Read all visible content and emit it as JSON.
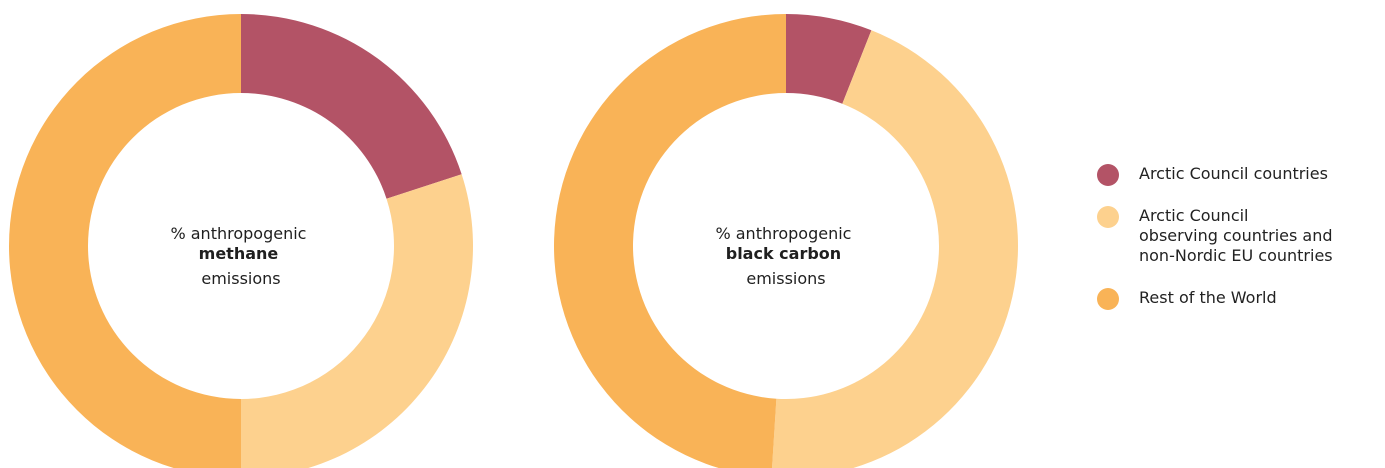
{
  "colors": {
    "arctic": "#b35366",
    "observers": "#fdd18e",
    "rest": "#f9b357"
  },
  "chart_data": [
    {
      "type": "donut",
      "title_line1": "% anthropogenic",
      "title_bold": "methane",
      "title_line3": "emissions",
      "slices": [
        {
          "name": "Arctic Council countries",
          "value": 20
        },
        {
          "name": "Arctic Council observing countries and non-Nordic EU countries",
          "value": 30
        },
        {
          "name": "Rest of the World",
          "value": 50
        }
      ]
    },
    {
      "type": "donut",
      "title_line1": "% anthropogenic",
      "title_bold": "black carbon",
      "title_line3": "emissions",
      "slices": [
        {
          "name": "Arctic Council countries",
          "value": 6
        },
        {
          "name": "Arctic Council observing countries and non-Nordic EU countries",
          "value": 45
        },
        {
          "name": "Rest of the World",
          "value": 49
        }
      ]
    }
  ],
  "legend": [
    {
      "key": "arctic",
      "label": "Arctic Council countries"
    },
    {
      "key": "observers",
      "label": "Arctic Council\nobserving countries and\nnon-Nordic EU countries"
    },
    {
      "key": "rest",
      "label": "Rest of the World"
    }
  ]
}
